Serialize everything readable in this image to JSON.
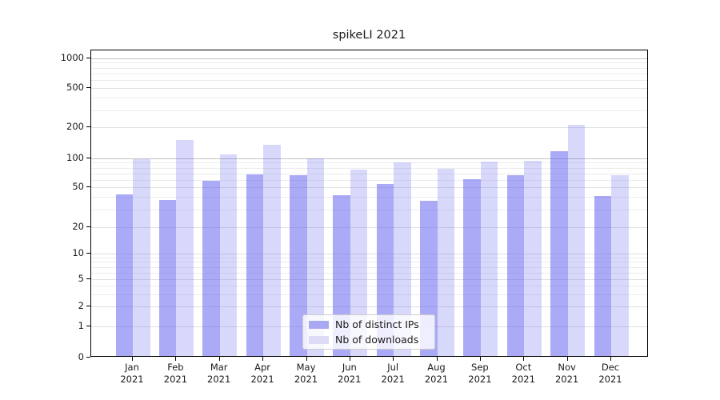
{
  "title": "spikeLI 2021",
  "chart_data": {
    "type": "bar",
    "title": "spikeLI 2021",
    "year": "2021",
    "categories": [
      "Jan",
      "Feb",
      "Mar",
      "Apr",
      "May",
      "Jun",
      "Jul",
      "Aug",
      "Sep",
      "Oct",
      "Nov",
      "Dec"
    ],
    "series": [
      {
        "name": "Nb of distinct IPs",
        "color": "rgba(100,100,240,0.55)",
        "swatch_color": "#a9a9f3",
        "values": [
          42,
          37,
          58,
          67,
          66,
          41,
          53,
          36,
          60,
          65,
          115,
          40
        ]
      },
      {
        "name": "Nb of downloads",
        "color": "rgba(100,100,240,0.25)",
        "swatch_color": "#dcdcf9",
        "values": [
          96,
          147,
          107,
          133,
          98,
          75,
          89,
          76,
          91,
          93,
          210,
          65
        ]
      }
    ],
    "yscale": "symlog",
    "yticks": [
      0,
      1,
      2,
      5,
      10,
      20,
      50,
      100,
      200,
      500,
      1000
    ],
    "minor_gridline_values": [
      3,
      4,
      6,
      7,
      8,
      9,
      30,
      40,
      60,
      70,
      80,
      90,
      300,
      400,
      600,
      700,
      800,
      900
    ],
    "emphasized_gridline_values": [
      100,
      1000
    ],
    "ylim": [
      0,
      1300
    ],
    "grid": true,
    "legend_position": "lower center",
    "gridline_color": "#ececec",
    "major_gridline_color": "#e0e0e0",
    "emphasized_gridline_color": "#c3c3c3"
  }
}
